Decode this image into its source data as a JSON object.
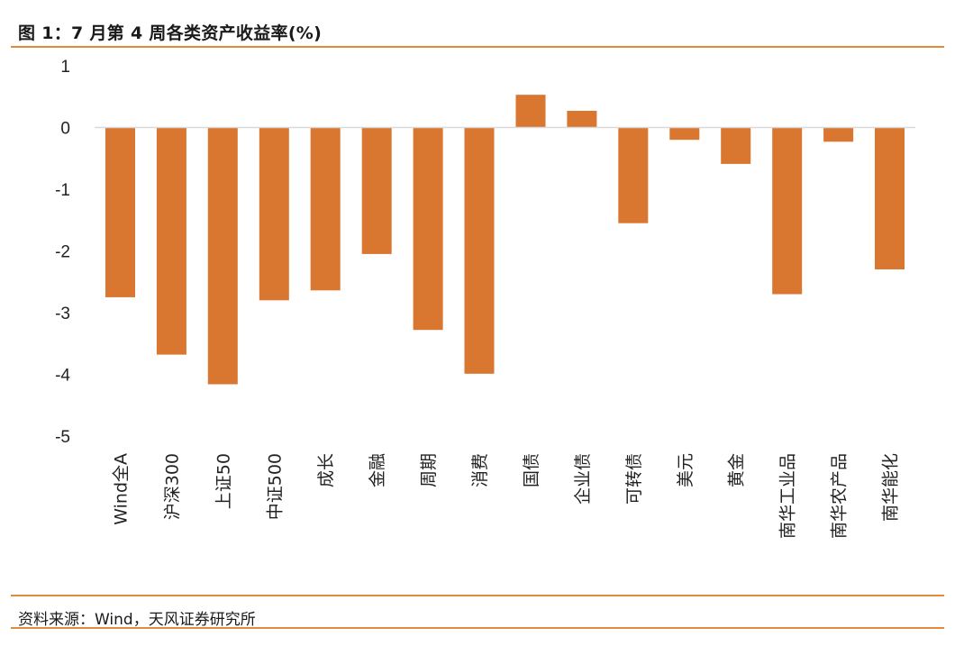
{
  "title": "图 1：7 月第 4 周各类资产收益率(%)",
  "source": "资料来源：Wind，天风证券研究所",
  "colors": {
    "bar": "#d97630",
    "axis": "#d9d9d9",
    "rule": "#e08a3c"
  },
  "chart_data": {
    "type": "bar",
    "title": "图 1：7 月第 4 周各类资产收益率(%)",
    "xlabel": "",
    "ylabel": "",
    "ylim": [
      -5,
      1
    ],
    "yticks": [
      1,
      0,
      -1,
      -2,
      -3,
      -4,
      -5
    ],
    "grid": false,
    "legend": "none",
    "categories": [
      "Wind全A",
      "沪深300",
      "上证50",
      "中证500",
      "成长",
      "金融",
      "周期",
      "消费",
      "国债",
      "企业债",
      "可转债",
      "美元",
      "黄金",
      "南华工业品",
      "南华农产品",
      "南华能化"
    ],
    "values": [
      -2.75,
      -3.68,
      -4.16,
      -2.8,
      -2.64,
      -2.05,
      -3.28,
      -3.99,
      0.53,
      0.27,
      -1.55,
      -0.2,
      -0.59,
      -2.7,
      -0.23,
      -2.3
    ]
  }
}
